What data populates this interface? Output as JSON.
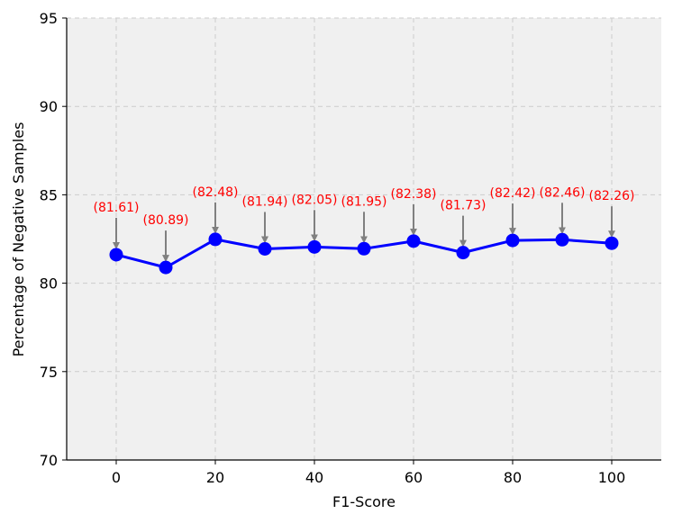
{
  "chart_data": {
    "type": "line",
    "xlabel": "F1-Score",
    "ylabel": "Percentage of Negative Samples",
    "xlim": [
      -10,
      110
    ],
    "ylim": [
      70,
      95
    ],
    "x_ticks": [
      "0",
      "20",
      "40",
      "60",
      "80",
      "100"
    ],
    "y_ticks": [
      "70",
      "75",
      "80",
      "85",
      "90",
      "95"
    ],
    "grid": true,
    "series": [
      {
        "x": [
          0,
          10,
          20,
          30,
          40,
          50,
          60,
          70,
          80,
          90,
          100
        ],
        "y": [
          81.61,
          80.89,
          82.48,
          81.94,
          82.05,
          81.95,
          82.38,
          81.73,
          82.42,
          82.46,
          82.26
        ],
        "color": "#0000ff"
      }
    ],
    "annotations": [
      "(81.61)",
      "(80.89)",
      "(82.48)",
      "(81.94)",
      "(82.05)",
      "(81.95)",
      "(82.38)",
      "(81.73)",
      "(82.42)",
      "(82.46)",
      "(82.26)"
    ],
    "colors": {
      "line": "#0000ff",
      "marker": "#0000ff",
      "annotation": "#ff0000",
      "arrow": "#808080",
      "plot_background": "#f0f0f0",
      "grid": "#cccccc"
    }
  }
}
